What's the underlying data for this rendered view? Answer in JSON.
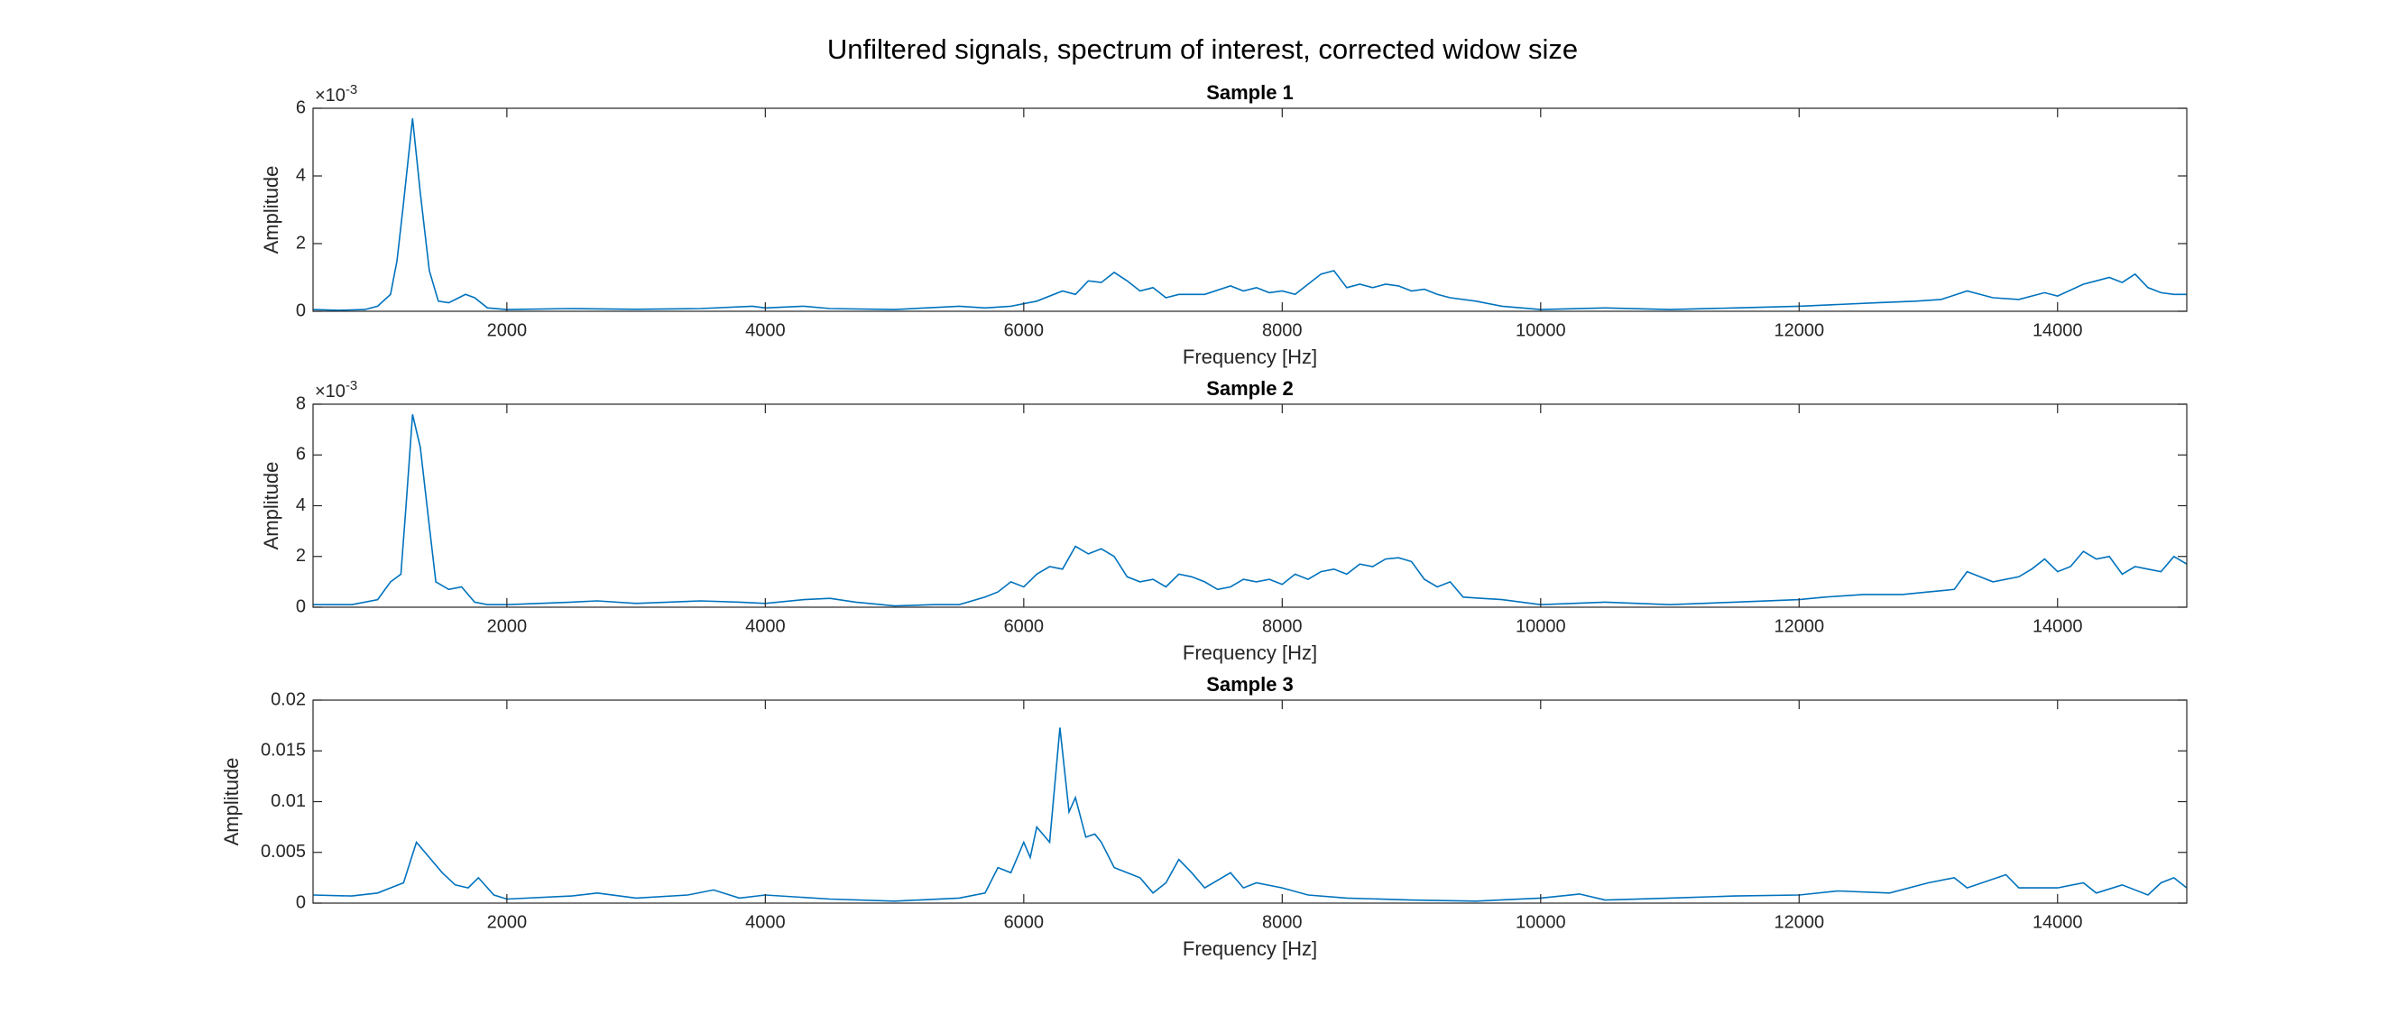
{
  "title": "Unfiltered signals, spectrum of interest, corrected widow size",
  "chart_data": [
    {
      "type": "line",
      "title": "Sample 1",
      "xlabel": "Frequency [Hz]",
      "ylabel": "Amplitude",
      "color": "#0072bd",
      "y_multiplier": {
        "base": "×10",
        "exponent": "-3"
      },
      "xlim": [
        500,
        15000
      ],
      "xticks": [
        2000,
        4000,
        6000,
        8000,
        10000,
        12000,
        14000
      ],
      "ylim": [
        0,
        6
      ],
      "yticks": [
        0,
        2,
        4,
        6
      ],
      "x": [
        500,
        700,
        900,
        1000,
        1100,
        1150,
        1200,
        1270,
        1330,
        1400,
        1470,
        1550,
        1680,
        1750,
        1850,
        2000,
        2500,
        3000,
        3500,
        3900,
        4000,
        4300,
        4500,
        5000,
        5500,
        5700,
        5900,
        6100,
        6300,
        6400,
        6500,
        6600,
        6700,
        6800,
        6900,
        7000,
        7100,
        7200,
        7400,
        7600,
        7700,
        7800,
        7900,
        8000,
        8100,
        8200,
        8300,
        8400,
        8500,
        8600,
        8700,
        8800,
        8900,
        9000,
        9100,
        9200,
        9300,
        9500,
        9700,
        10000,
        10500,
        11000,
        11500,
        12000,
        12300,
        12600,
        12900,
        13100,
        13300,
        13500,
        13700,
        13900,
        14000,
        14200,
        14300,
        14400,
        14500,
        14600,
        14700,
        14800,
        14900,
        15000
      ],
      "values": [
        0.05,
        0.03,
        0.05,
        0.15,
        0.5,
        1.5,
        3.2,
        5.7,
        3.5,
        1.2,
        0.3,
        0.25,
        0.5,
        0.4,
        0.1,
        0.05,
        0.08,
        0.06,
        0.08,
        0.15,
        0.1,
        0.15,
        0.08,
        0.05,
        0.15,
        0.1,
        0.15,
        0.3,
        0.6,
        0.5,
        0.9,
        0.85,
        1.15,
        0.9,
        0.6,
        0.7,
        0.4,
        0.5,
        0.5,
        0.75,
        0.6,
        0.7,
        0.55,
        0.6,
        0.5,
        0.8,
        1.1,
        1.2,
        0.7,
        0.8,
        0.7,
        0.8,
        0.75,
        0.6,
        0.65,
        0.5,
        0.4,
        0.3,
        0.15,
        0.05,
        0.1,
        0.05,
        0.1,
        0.15,
        0.2,
        0.25,
        0.3,
        0.35,
        0.6,
        0.4,
        0.35,
        0.55,
        0.45,
        0.8,
        0.9,
        1.0,
        0.85,
        1.1,
        0.7,
        0.55,
        0.5,
        0.5
      ]
    },
    {
      "type": "line",
      "title": "Sample 2",
      "xlabel": "Frequency [Hz]",
      "ylabel": "Amplitude",
      "color": "#0072bd",
      "y_multiplier": {
        "base": "×10",
        "exponent": "-3"
      },
      "xlim": [
        500,
        15000
      ],
      "xticks": [
        2000,
        4000,
        6000,
        8000,
        10000,
        12000,
        14000
      ],
      "ylim": [
        0,
        8
      ],
      "yticks": [
        0,
        2,
        4,
        6,
        8
      ],
      "x": [
        500,
        800,
        1000,
        1100,
        1180,
        1220,
        1270,
        1330,
        1400,
        1450,
        1550,
        1650,
        1750,
        1850,
        2000,
        2500,
        2700,
        3000,
        3500,
        3800,
        4000,
        4300,
        4500,
        4700,
        5000,
        5300,
        5500,
        5700,
        5800,
        5900,
        6000,
        6100,
        6200,
        6300,
        6400,
        6500,
        6600,
        6700,
        6800,
        6900,
        7000,
        7100,
        7200,
        7300,
        7400,
        7500,
        7600,
        7700,
        7800,
        7900,
        8000,
        8100,
        8200,
        8300,
        8400,
        8500,
        8600,
        8700,
        8800,
        8900,
        9000,
        9100,
        9200,
        9300,
        9400,
        9700,
        10000,
        10500,
        11000,
        11500,
        12000,
        12200,
        12500,
        12800,
        13000,
        13200,
        13300,
        13500,
        13700,
        13800,
        13900,
        14000,
        14100,
        14200,
        14300,
        14400,
        14500,
        14600,
        14700,
        14800,
        14900,
        15000
      ],
      "values": [
        0.1,
        0.1,
        0.3,
        1.0,
        1.3,
        4,
        7.6,
        6.3,
        3.2,
        1.0,
        0.7,
        0.8,
        0.2,
        0.1,
        0.1,
        0.2,
        0.25,
        0.15,
        0.25,
        0.2,
        0.15,
        0.3,
        0.35,
        0.2,
        0.05,
        0.1,
        0.1,
        0.4,
        0.6,
        1.0,
        0.8,
        1.3,
        1.6,
        1.5,
        2.4,
        2.1,
        2.3,
        2.0,
        1.2,
        1.0,
        1.1,
        0.8,
        1.3,
        1.2,
        1.0,
        0.7,
        0.8,
        1.1,
        1.0,
        1.1,
        0.9,
        1.3,
        1.1,
        1.4,
        1.5,
        1.3,
        1.7,
        1.6,
        1.9,
        1.95,
        1.8,
        1.1,
        0.8,
        1.0,
        0.4,
        0.3,
        0.1,
        0.2,
        0.1,
        0.2,
        0.3,
        0.4,
        0.5,
        0.5,
        0.6,
        0.7,
        1.4,
        1.0,
        1.2,
        1.5,
        1.9,
        1.4,
        1.6,
        2.2,
        1.9,
        2.0,
        1.3,
        1.6,
        1.5,
        1.4,
        2.0,
        1.7
      ]
    },
    {
      "type": "line",
      "title": "Sample 3",
      "xlabel": "Frequency [Hz]",
      "ylabel": "Amplitude",
      "color": "#0072bd",
      "xlim": [
        500,
        15000
      ],
      "xticks": [
        2000,
        4000,
        6000,
        8000,
        10000,
        12000,
        14000
      ],
      "ylim": [
        0,
        0.02
      ],
      "yticks": [
        0,
        0.005,
        0.01,
        0.015,
        0.02
      ],
      "x": [
        500,
        800,
        1000,
        1100,
        1200,
        1300,
        1400,
        1500,
        1600,
        1700,
        1780,
        1900,
        2000,
        2500,
        2700,
        3000,
        3400,
        3600,
        3800,
        4000,
        4500,
        5000,
        5500,
        5700,
        5800,
        5900,
        6000,
        6050,
        6100,
        6200,
        6280,
        6350,
        6400,
        6480,
        6550,
        6600,
        6700,
        6800,
        6900,
        7000,
        7100,
        7200,
        7300,
        7400,
        7600,
        7700,
        7800,
        8000,
        8200,
        8500,
        9000,
        9500,
        10000,
        10300,
        10500,
        11000,
        11500,
        12000,
        12300,
        12700,
        13000,
        13200,
        13300,
        13600,
        13700,
        14000,
        14200,
        14300,
        14500,
        14700,
        14800,
        14900,
        15000
      ],
      "values": [
        0.0008,
        0.0007,
        0.001,
        0.0015,
        0.002,
        0.006,
        0.0045,
        0.003,
        0.0018,
        0.0015,
        0.0025,
        0.0008,
        0.0004,
        0.0007,
        0.001,
        0.0005,
        0.0008,
        0.0013,
        0.0005,
        0.0008,
        0.0004,
        0.0002,
        0.0005,
        0.001,
        0.0035,
        0.003,
        0.006,
        0.0045,
        0.0075,
        0.006,
        0.0173,
        0.009,
        0.0104,
        0.0065,
        0.0068,
        0.006,
        0.0035,
        0.003,
        0.0025,
        0.001,
        0.002,
        0.0043,
        0.003,
        0.0015,
        0.003,
        0.0015,
        0.002,
        0.0015,
        0.0008,
        0.0005,
        0.0003,
        0.0002,
        0.0005,
        0.0009,
        0.0003,
        0.0005,
        0.0007,
        0.0008,
        0.0012,
        0.001,
        0.002,
        0.0025,
        0.0015,
        0.0028,
        0.0015,
        0.0015,
        0.002,
        0.001,
        0.0018,
        0.0008,
        0.002,
        0.0025,
        0.0015
      ]
    }
  ]
}
